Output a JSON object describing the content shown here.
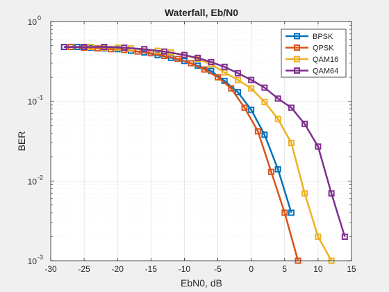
{
  "chart_data": {
    "type": "line",
    "title": "Waterfall, Eb/N0",
    "xlabel": "EbN0, dB",
    "ylabel": "BER",
    "xlim": [
      -30,
      15
    ],
    "ylim": [
      0.001,
      1
    ],
    "yscale": "log",
    "grid": true,
    "minor_grid": true,
    "legend_position": "top-right",
    "x_ticks": [
      "-30",
      "-25",
      "-20",
      "-15",
      "-10",
      "-5",
      "0",
      "5",
      "10",
      "15"
    ],
    "x_tick_values": [
      -30,
      -25,
      -20,
      -15,
      -10,
      -5,
      0,
      5,
      10,
      15
    ],
    "y_ticks": [
      {
        "base": "10",
        "exp": "-3",
        "value": 0.001
      },
      {
        "base": "10",
        "exp": "-2",
        "value": 0.01
      },
      {
        "base": "10",
        "exp": "-1",
        "value": 0.1
      },
      {
        "base": "10",
        "exp": "0",
        "value": 1
      }
    ],
    "series": [
      {
        "name": "BPSK",
        "color": "#0072BD",
        "x": [
          -28,
          -26,
          -24,
          -22,
          -20,
          -18,
          -16,
          -14,
          -12,
          -10,
          -8,
          -6,
          -4,
          -2,
          0,
          2,
          4,
          6
        ],
        "y": [
          0.48,
          0.48,
          0.47,
          0.46,
          0.45,
          0.43,
          0.41,
          0.38,
          0.35,
          0.32,
          0.28,
          0.24,
          0.18,
          0.13,
          0.078,
          0.038,
          0.014,
          0.004
        ]
      },
      {
        "name": "QPSK",
        "color": "#D95319",
        "x": [
          -27,
          -25,
          -23,
          -21,
          -19,
          -17,
          -15,
          -13,
          -11,
          -9,
          -7,
          -5,
          -3,
          -1,
          1,
          3,
          5,
          7
        ],
        "y": [
          0.48,
          0.47,
          0.46,
          0.45,
          0.44,
          0.42,
          0.4,
          0.37,
          0.34,
          0.3,
          0.25,
          0.2,
          0.145,
          0.083,
          0.042,
          0.013,
          0.004,
          0.001
        ]
      },
      {
        "name": "QAM16",
        "color": "#EDB120",
        "x": [
          -24,
          -22,
          -20,
          -18,
          -16,
          -14,
          -12,
          -10,
          -8,
          -6,
          -4,
          -2,
          0,
          2,
          4,
          6,
          8,
          10,
          12
        ],
        "y": [
          0.48,
          0.47,
          0.47,
          0.46,
          0.45,
          0.43,
          0.41,
          0.38,
          0.34,
          0.29,
          0.23,
          0.185,
          0.145,
          0.098,
          0.06,
          0.03,
          0.007,
          0.002,
          0.001
        ]
      },
      {
        "name": "QAM64",
        "color": "#7E2F8E",
        "x": [
          -28,
          -25,
          -22,
          -19,
          -16,
          -13,
          -10,
          -8,
          -6,
          -4,
          -2,
          0,
          2,
          4,
          6,
          8,
          10,
          12,
          14
        ],
        "y": [
          0.48,
          0.48,
          0.48,
          0.47,
          0.45,
          0.42,
          0.38,
          0.35,
          0.31,
          0.27,
          0.225,
          0.185,
          0.148,
          0.108,
          0.083,
          0.052,
          0.027,
          0.007,
          0.002
        ]
      }
    ]
  }
}
